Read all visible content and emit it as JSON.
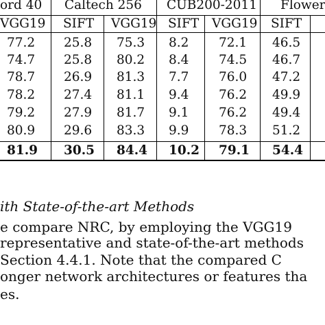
{
  "table": {
    "group_headers": [
      "ord 40",
      "Caltech 256",
      "CUB200-2011",
      "Flower"
    ],
    "sub_headers": [
      "VGG19",
      "SIFT",
      "VGG19",
      "SIFT",
      "VGG19",
      "SIFT"
    ],
    "rows": [
      [
        "77.2",
        "25.8",
        "75.3",
        "8.2",
        "72.1",
        "46.5"
      ],
      [
        "74.7",
        "25.8",
        "80.2",
        "8.4",
        "74.5",
        "46.7"
      ],
      [
        "78.7",
        "26.9",
        "81.3",
        "7.7",
        "76.0",
        "47.2"
      ],
      [
        "78.2",
        "27.4",
        "81.1",
        "9.4",
        "76.2",
        "49.9"
      ],
      [
        "79.2",
        "27.9",
        "81.7",
        "9.1",
        "76.2",
        "49.4"
      ],
      [
        "80.9",
        "29.6",
        "83.3",
        "9.9",
        "78.3",
        "51.2"
      ],
      [
        "81.9",
        "30.5",
        "84.4",
        "10.2",
        "79.1",
        "54.4"
      ]
    ],
    "bold_row_index": 6
  },
  "text": {
    "section_title": "ith State-of-the-art Methods",
    "lines": [
      "e compare NRC, by employing the VGG19",
      "representative and state-of-the-art methods",
      " Section 4.4.1.  Note that the compared C",
      "onger network architectures or features tha",
      "es."
    ]
  }
}
